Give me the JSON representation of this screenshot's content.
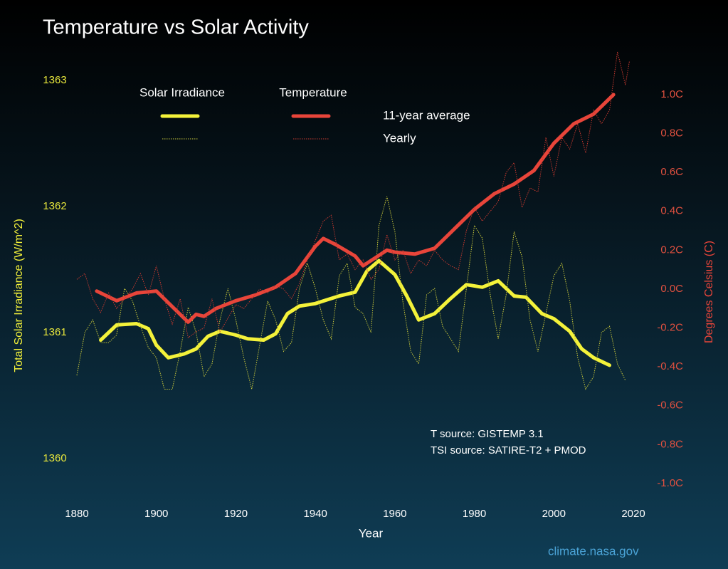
{
  "chart_data": {
    "type": "line",
    "title": "Temperature vs Solar Activity",
    "xlabel": "Year",
    "ylabel": "Total Solar Irradiance (W/m^2)",
    "y2label": "Degrees Celsius (C)",
    "xlim": [
      1880,
      2020
    ],
    "xticks": [
      1880,
      1900,
      1920,
      1940,
      1960,
      1980,
      2000,
      2020
    ],
    "ylim": [
      1359.75,
      1363.25
    ],
    "yticks": [
      1360,
      1361,
      1362,
      1363
    ],
    "y2lim": [
      -1.033,
      1.234
    ],
    "y2ticks": [
      {
        "value": -1.0,
        "label": "-1.0C"
      },
      {
        "value": -0.8,
        "label": "-0.8C"
      },
      {
        "value": -0.6,
        "label": "-0.6C"
      },
      {
        "value": -0.4,
        "label": "-0.4C"
      },
      {
        "value": -0.2,
        "label": "-0.2C"
      },
      {
        "value": 0.0,
        "label": "0.0C"
      },
      {
        "value": 0.2,
        "label": "0.2C"
      },
      {
        "value": 0.4,
        "label": "0.4C"
      },
      {
        "value": 0.6,
        "label": "0.6C"
      },
      {
        "value": 0.8,
        "label": "0.8C"
      },
      {
        "value": 1.0,
        "label": "1.0C"
      }
    ],
    "grid": false,
    "legend": {
      "columns": [
        "Solar Irradiance",
        "Temperature"
      ],
      "rows": [
        "11-year average",
        "Yearly"
      ]
    },
    "series": [
      {
        "color": "#f4f23a",
        "style": "thick",
        "axis": "y",
        "x": [
          1886,
          1890,
          1895,
          1898,
          1900,
          1903,
          1907,
          1910,
          1913,
          1916,
          1920,
          1923,
          1927,
          1930,
          1933,
          1936,
          1940,
          1943,
          1946,
          1950,
          1953,
          1956,
          1960,
          1963,
          1966,
          1970,
          1974,
          1978,
          1982,
          1986,
          1990,
          1993,
          1997,
          2000,
          2004,
          2007,
          2010,
          2014
        ],
        "values": [
          1360.94,
          1361.06,
          1361.07,
          1361.03,
          1360.9,
          1360.8,
          1360.83,
          1360.87,
          1360.97,
          1361.01,
          1360.98,
          1360.95,
          1360.94,
          1360.99,
          1361.15,
          1361.21,
          1361.23,
          1361.26,
          1361.29,
          1361.32,
          1361.49,
          1361.57,
          1361.46,
          1361.29,
          1361.1,
          1361.15,
          1361.27,
          1361.38,
          1361.36,
          1361.41,
          1361.29,
          1361.28,
          1361.15,
          1361.11,
          1361.01,
          1360.87,
          1360.8,
          1360.74
        ]
      },
      {
        "color": "#c8c83a",
        "style": "dotted",
        "axis": "y",
        "x": [
          1880,
          1882,
          1884,
          1886,
          1888,
          1890,
          1892,
          1894,
          1896,
          1898,
          1900,
          1902,
          1904,
          1906,
          1908,
          1910,
          1912,
          1914,
          1916,
          1918,
          1920,
          1922,
          1924,
          1926,
          1928,
          1930,
          1932,
          1934,
          1936,
          1938,
          1940,
          1942,
          1944,
          1946,
          1948,
          1950,
          1952,
          1954,
          1956,
          1958,
          1960,
          1962,
          1964,
          1966,
          1968,
          1970,
          1972,
          1974,
          1976,
          1978,
          1980,
          1982,
          1984,
          1986,
          1988,
          1990,
          1992,
          1994,
          1996,
          1998,
          2000,
          2002,
          2004,
          2006,
          2008,
          2010,
          2012,
          2014,
          2016,
          2018
        ],
        "values": [
          1360.66,
          1361.0,
          1361.1,
          1360.92,
          1360.92,
          1360.98,
          1361.35,
          1361.25,
          1361.05,
          1360.88,
          1360.8,
          1360.55,
          1360.55,
          1360.85,
          1361.2,
          1361.0,
          1360.65,
          1360.75,
          1361.1,
          1361.35,
          1361.1,
          1360.8,
          1360.55,
          1360.9,
          1361.25,
          1361.1,
          1360.85,
          1360.92,
          1361.35,
          1361.55,
          1361.35,
          1361.1,
          1360.95,
          1361.45,
          1361.55,
          1361.2,
          1361.15,
          1361.0,
          1361.85,
          1362.08,
          1361.8,
          1361.25,
          1360.85,
          1360.75,
          1361.3,
          1361.35,
          1361.05,
          1360.95,
          1360.85,
          1361.35,
          1361.85,
          1361.75,
          1361.3,
          1360.95,
          1361.3,
          1361.8,
          1361.6,
          1361.1,
          1360.85,
          1361.15,
          1361.45,
          1361.55,
          1361.25,
          1360.8,
          1360.55,
          1360.65,
          1361.0,
          1361.05,
          1360.75,
          1360.62
        ]
      },
      {
        "color": "#e8453a",
        "style": "thick",
        "axis": "y2",
        "x": [
          1885,
          1890,
          1895,
          1900,
          1905,
          1908,
          1910,
          1912,
          1915,
          1920,
          1925,
          1930,
          1935,
          1940,
          1942,
          1945,
          1950,
          1952,
          1955,
          1958,
          1960,
          1965,
          1970,
          1975,
          1980,
          1985,
          1990,
          1995,
          2000,
          2005,
          2010,
          2015
        ],
        "values": [
          -0.01,
          -0.06,
          -0.02,
          -0.01,
          -0.11,
          -0.17,
          -0.13,
          -0.14,
          -0.1,
          -0.06,
          -0.03,
          0.01,
          0.08,
          0.22,
          0.26,
          0.23,
          0.17,
          0.12,
          0.16,
          0.2,
          0.19,
          0.18,
          0.21,
          0.31,
          0.41,
          0.49,
          0.54,
          0.61,
          0.75,
          0.85,
          0.9,
          1.0
        ]
      },
      {
        "color": "#c8392f",
        "style": "dotted",
        "axis": "y2",
        "x": [
          1880,
          1882,
          1884,
          1886,
          1888,
          1890,
          1892,
          1894,
          1896,
          1898,
          1900,
          1902,
          1904,
          1906,
          1908,
          1910,
          1912,
          1914,
          1916,
          1918,
          1920,
          1922,
          1924,
          1926,
          1928,
          1930,
          1932,
          1934,
          1936,
          1938,
          1940,
          1942,
          1944,
          1946,
          1948,
          1950,
          1952,
          1954,
          1956,
          1958,
          1960,
          1962,
          1964,
          1966,
          1968,
          1970,
          1972,
          1974,
          1976,
          1978,
          1980,
          1982,
          1984,
          1986,
          1988,
          1990,
          1992,
          1994,
          1996,
          1998,
          2000,
          2002,
          2004,
          2006,
          2008,
          2010,
          2012,
          2014,
          2016,
          2018,
          2019
        ],
        "values": [
          0.05,
          0.08,
          -0.05,
          -0.12,
          -0.02,
          -0.1,
          -0.05,
          0.0,
          0.08,
          -0.03,
          0.12,
          -0.05,
          -0.18,
          -0.05,
          -0.25,
          -0.22,
          -0.2,
          -0.05,
          -0.22,
          -0.15,
          -0.08,
          -0.1,
          -0.05,
          0.0,
          -0.02,
          0.02,
          0.0,
          -0.05,
          0.03,
          0.15,
          0.25,
          0.35,
          0.38,
          0.15,
          0.18,
          0.1,
          0.15,
          0.05,
          0.1,
          0.28,
          0.15,
          0.2,
          0.08,
          0.15,
          0.12,
          0.2,
          0.15,
          0.12,
          0.1,
          0.3,
          0.42,
          0.35,
          0.4,
          0.45,
          0.6,
          0.65,
          0.42,
          0.52,
          0.5,
          0.78,
          0.58,
          0.78,
          0.72,
          0.85,
          0.7,
          0.92,
          0.85,
          0.92,
          1.22,
          1.05,
          1.17
        ]
      }
    ],
    "annotations": [
      "T source: GISTEMP 3.1",
      "TSI source: SATIRE-T2 + PMOD",
      "climate.nasa.gov"
    ]
  }
}
